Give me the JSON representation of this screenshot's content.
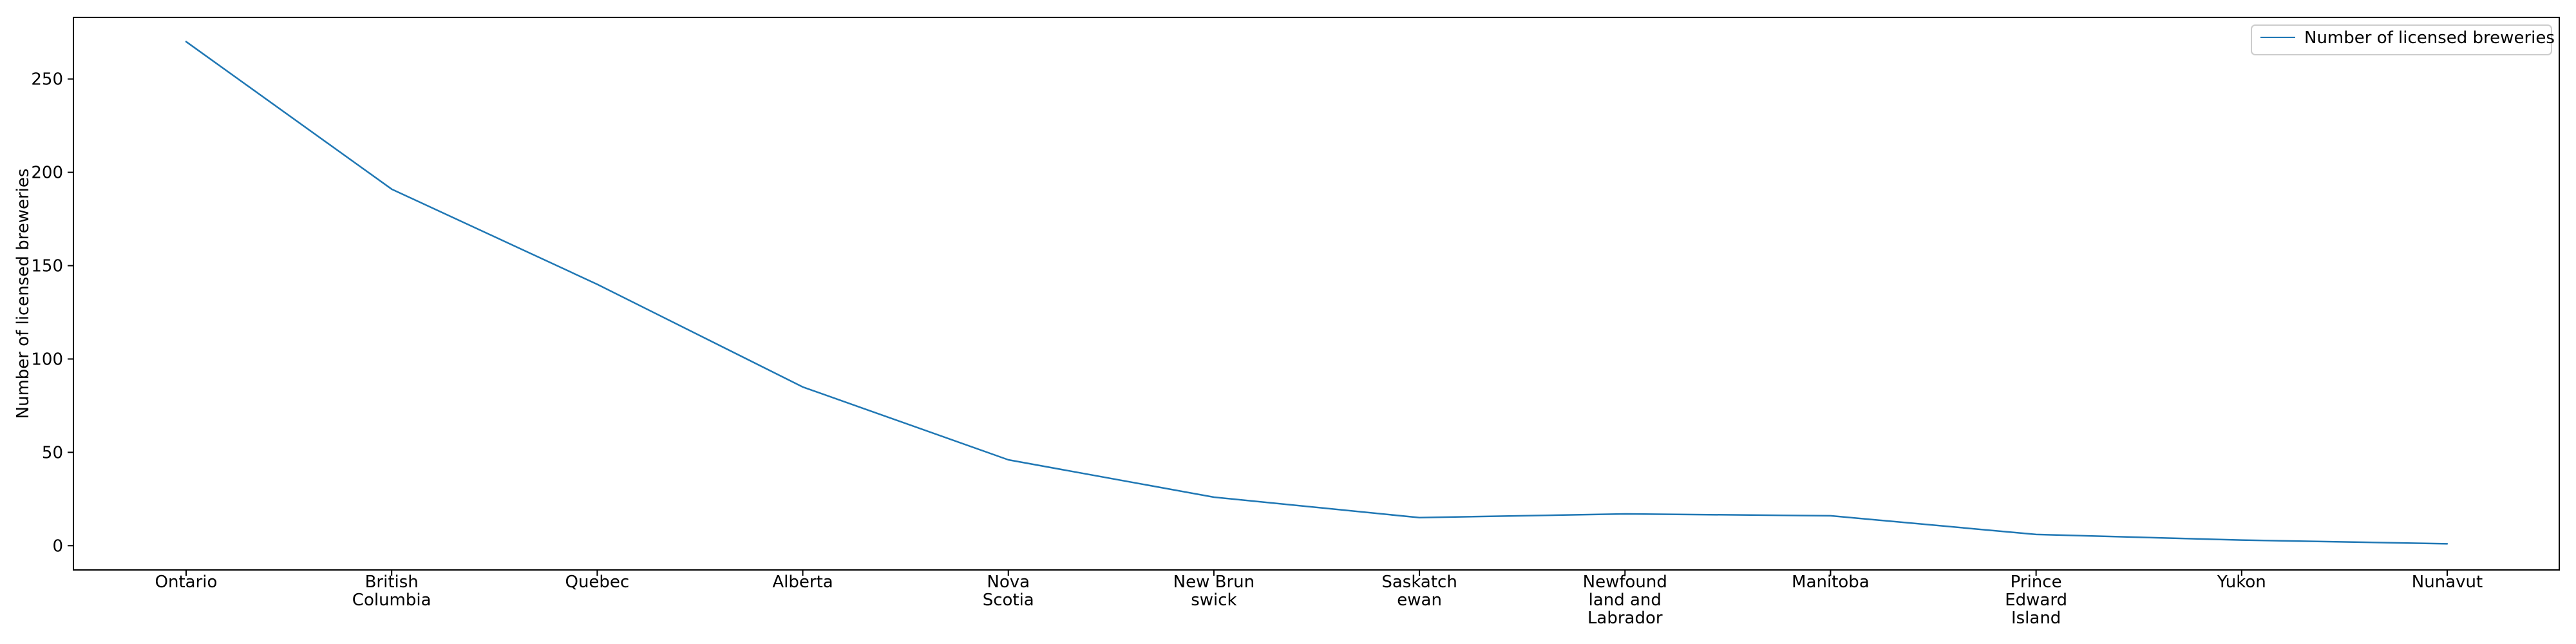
{
  "chart_data": {
    "type": "line",
    "categories": [
      "Ontario",
      "British Columbia",
      "Quebec",
      "Alberta",
      "Nova Scotia",
      "New Brunswick",
      "Saskatchewan",
      "Newfoundland and Labrador",
      "Manitoba",
      "Prince Edward Island",
      "Yukon",
      "Nunavut"
    ],
    "category_label_lines": [
      [
        "Ontario"
      ],
      [
        "British",
        "Columbia"
      ],
      [
        "Quebec"
      ],
      [
        "Alberta"
      ],
      [
        "Nova",
        "Scotia"
      ],
      [
        "New Brun",
        "swick"
      ],
      [
        "Saskatch",
        "ewan"
      ],
      [
        "Newfound",
        "land and",
        "Labrador"
      ],
      [
        "Manitoba"
      ],
      [
        "Prince",
        "Edward",
        "Island"
      ],
      [
        "Yukon"
      ],
      [
        "Nunavut"
      ]
    ],
    "series": [
      {
        "name": "Number of licensed breweries",
        "values": [
          270,
          191,
          140,
          85,
          46,
          26,
          15,
          17,
          16,
          6,
          3,
          1
        ],
        "color": "#1f77b4"
      }
    ],
    "ylabel": "Number of licensed breweries",
    "xlabel": "",
    "ylim": [
      -13,
      283
    ],
    "yticks": [
      0,
      50,
      100,
      150,
      200,
      250
    ],
    "legend_position": "top-right",
    "grid": false
  }
}
